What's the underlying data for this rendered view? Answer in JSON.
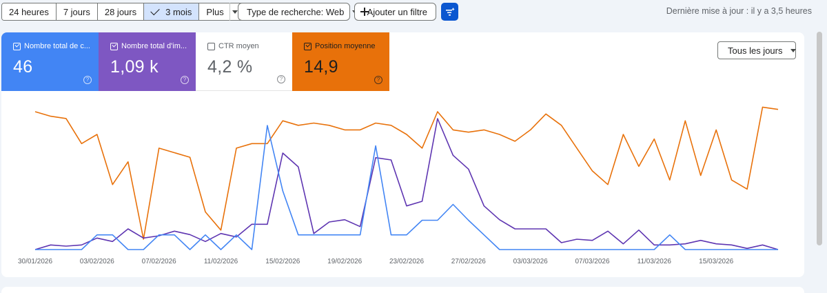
{
  "toolbar": {
    "ranges": [
      "24 heures",
      "7 jours",
      "28 jours",
      "3 mois",
      "Plus"
    ],
    "active_range": "3 mois",
    "search_type": "Type de recherche: Web",
    "add_filter": "Ajouter un filtre",
    "updated": "Dernière mise à jour : il y a 3,5 heures"
  },
  "metrics": [
    {
      "label": "Nombre total de c...",
      "value": "46",
      "checked": true,
      "color": "#4285f4"
    },
    {
      "label": "Nombre total d'im...",
      "value": "1,09 k",
      "checked": true,
      "color": "#7e57c2"
    },
    {
      "label": "CTR moyen",
      "value": "4,2 %",
      "checked": false,
      "color": "#ffffff"
    },
    {
      "label": "Position moyenne",
      "value": "14,9",
      "checked": true,
      "color": "#e8710a"
    }
  ],
  "days_dropdown": "Tous les jours",
  "help_glyph": "?",
  "chart_data": {
    "type": "line",
    "x_start": "30/01/2026",
    "x_end": "19/03/2026",
    "tick_labels": [
      "30/01/2026",
      "03/02/2026",
      "07/02/2026",
      "11/02/2026",
      "15/02/2026",
      "19/02/2026",
      "23/02/2026",
      "27/02/2026",
      "03/03/2026",
      "07/03/2026",
      "11/03/2026",
      "15/03/2026"
    ],
    "grid": false,
    "series": [
      {
        "name": "Position moyenne",
        "color": "#e8710a",
        "values": [
          8,
          9,
          9.5,
          15,
          13,
          24,
          19,
          36,
          16,
          17,
          18,
          30,
          34,
          16,
          15,
          15,
          10,
          11,
          10.5,
          11,
          12,
          12,
          10.5,
          11,
          13,
          16,
          8,
          12,
          12.5,
          12,
          13,
          14.5,
          12,
          8.5,
          11,
          16,
          21,
          24,
          13,
          20,
          14,
          23,
          10,
          22,
          12,
          23,
          25,
          7,
          7.5
        ]
      },
      {
        "name": "Nombre total d'impressions",
        "color": "#5e35b1",
        "values": [
          0,
          2,
          1.5,
          2,
          5,
          3.5,
          9,
          5,
          6,
          8,
          6.5,
          3.5,
          7,
          5.5,
          11,
          11,
          42,
          36,
          7,
          12,
          13,
          10,
          40,
          39,
          19,
          21,
          57,
          41,
          35,
          19,
          13,
          9,
          9,
          9,
          3,
          4.5,
          4,
          8,
          2.5,
          8.5,
          2,
          2,
          2.5,
          4,
          2.5,
          2,
          0.5,
          2,
          0
        ]
      },
      {
        "name": "Nombre total de clics",
        "color": "#4285f4",
        "values": [
          0,
          0,
          0,
          0,
          6.5,
          6.5,
          0,
          0,
          6.5,
          6.5,
          0,
          6.5,
          0,
          6.5,
          0,
          55,
          26,
          6.5,
          6.5,
          6.5,
          6.5,
          6.5,
          46,
          6.5,
          6.5,
          13,
          13,
          20,
          13,
          6.5,
          0,
          0,
          0,
          0,
          0,
          0,
          0,
          0,
          0,
          0,
          0,
          6.5,
          0,
          0,
          0,
          0,
          0,
          0,
          0
        ]
      }
    ]
  }
}
